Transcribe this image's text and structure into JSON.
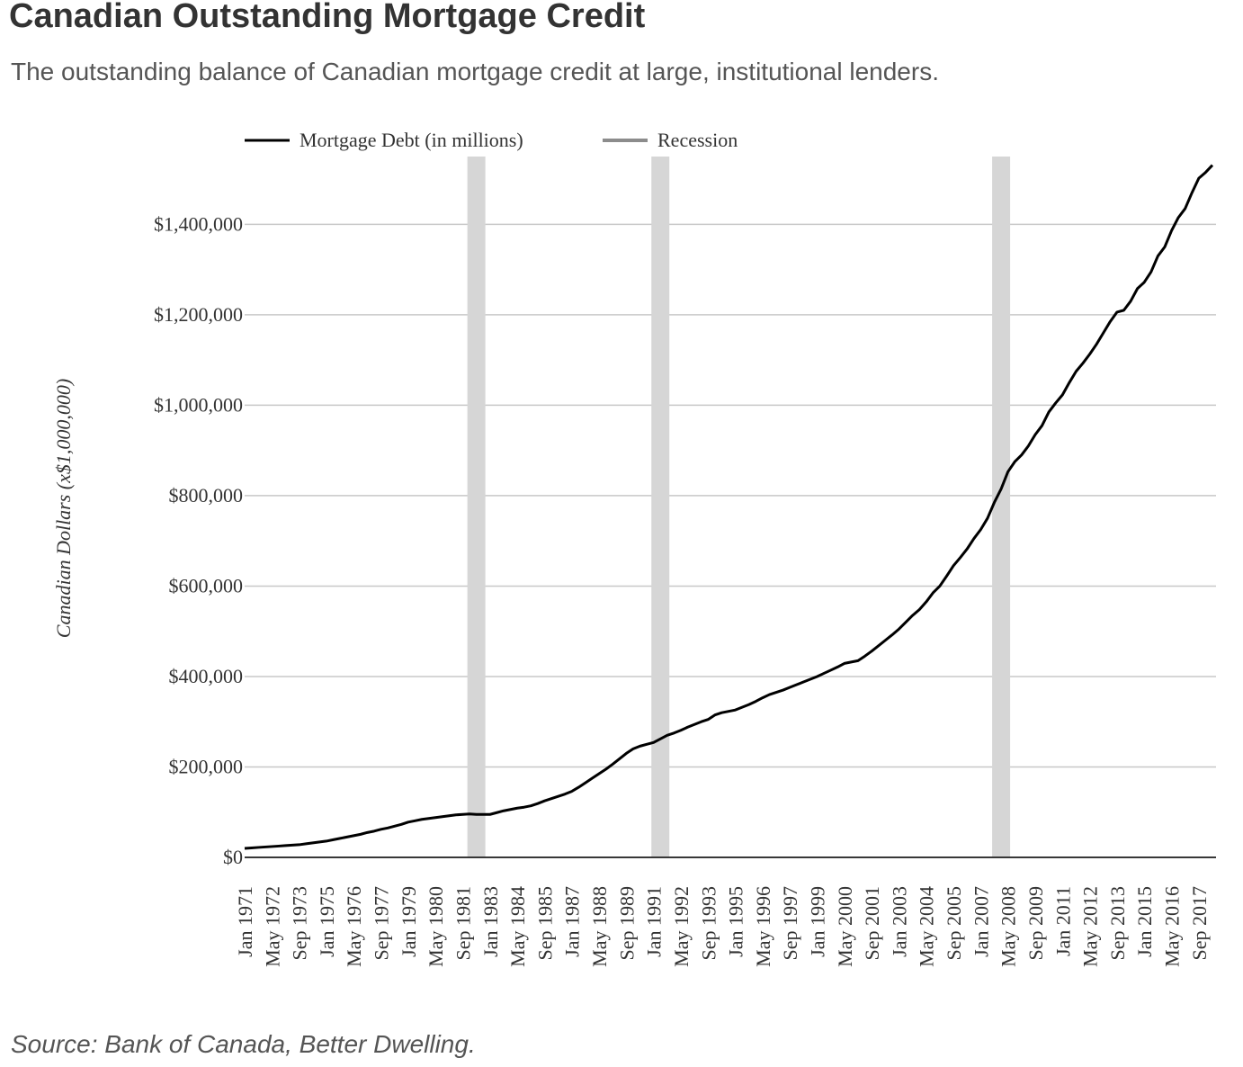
{
  "chart_data": {
    "type": "line",
    "title": "Canadian Outstanding Mortgage Credit",
    "subtitle": "The outstanding balance of Canadian mortgage credit at large, institutional lenders.",
    "y_label": "Canadian Dollars (x$1,000,000)",
    "source": "Source: Bank of Canada, Better Dwelling.",
    "categories": [
      "Jan 1971",
      null,
      null,
      null,
      "May 1972",
      null,
      null,
      null,
      "Sep 1973",
      null,
      null,
      null,
      "Jan 1975",
      null,
      null,
      null,
      "May 1976",
      null,
      null,
      null,
      "Sep 1977",
      null,
      null,
      null,
      "Jan 1979",
      null,
      null,
      null,
      "May 1980",
      null,
      null,
      null,
      "Sep 1981",
      null,
      null,
      null,
      "Jan 1983",
      null,
      null,
      null,
      "May 1984",
      null,
      null,
      null,
      "Sep 1985",
      null,
      null,
      null,
      "Jan 1987",
      null,
      null,
      null,
      "May 1988",
      null,
      null,
      null,
      "Sep 1989",
      null,
      null,
      null,
      "Jan 1991",
      null,
      null,
      null,
      "May 1992",
      null,
      null,
      null,
      "Sep 1993",
      null,
      null,
      null,
      "Jan 1995",
      null,
      null,
      null,
      "May 1996",
      null,
      null,
      null,
      "Sep 1997",
      null,
      null,
      null,
      "Jan 1999",
      null,
      null,
      null,
      "May 2000",
      null,
      null,
      null,
      "Sep 2001",
      null,
      null,
      null,
      "Jan 2003",
      null,
      null,
      null,
      "May 2004",
      null,
      null,
      null,
      "Sep 2005",
      null,
      null,
      null,
      "Jan 2007",
      null,
      null,
      null,
      "May 2008",
      null,
      null,
      null,
      "Sep 2009",
      null,
      null,
      null,
      "Jan 2011",
      null,
      null,
      null,
      "May 2012",
      null,
      null,
      null,
      "Sep 2013",
      null,
      null,
      null,
      "Jan 2015",
      null,
      null,
      null,
      "May 2016",
      null,
      null,
      null,
      "Sep 2017",
      null,
      null
    ],
    "series": [
      {
        "name": "Mortgage Debt (in millions)",
        "color": "#000000",
        "values": [
          20000,
          21000,
          22000,
          23000,
          24000,
          25000,
          26000,
          27000,
          28000,
          30000,
          32000,
          34000,
          36000,
          39000,
          42000,
          45000,
          48000,
          51000,
          55000,
          58000,
          62000,
          65000,
          69000,
          73000,
          78000,
          81000,
          84000,
          86000,
          88000,
          90000,
          92000,
          94000,
          95000,
          96000,
          95000,
          95000,
          95000,
          99000,
          103000,
          106000,
          109000,
          111000,
          114000,
          119000,
          125000,
          130000,
          135000,
          140000,
          146000,
          155000,
          165000,
          175000,
          185000,
          195000,
          206000,
          218000,
          230000,
          240000,
          246000,
          250000,
          254000,
          262000,
          270000,
          275000,
          281000,
          288000,
          294000,
          300000,
          305000,
          315000,
          320000,
          323000,
          326000,
          332000,
          338000,
          345000,
          353000,
          360000,
          365000,
          370000,
          376000,
          382000,
          388000,
          394000,
          400000,
          407000,
          414000,
          421000,
          429000,
          432000,
          435000,
          445000,
          456000,
          468000,
          480000,
          492000,
          505000,
          520000,
          535000,
          548000,
          565000,
          585000,
          600000,
          622000,
          645000,
          663000,
          682000,
          705000,
          725000,
          750000,
          785000,
          815000,
          853000,
          875000,
          890000,
          910000,
          935000,
          955000,
          985000,
          1005000,
          1023000,
          1050000,
          1075000,
          1093000,
          1113000,
          1135000,
          1160000,
          1185000,
          1206000,
          1210000,
          1230000,
          1258000,
          1272000,
          1295000,
          1330000,
          1350000,
          1386000,
          1415000,
          1435000,
          1470000,
          1502000,
          1515000,
          1531000
        ]
      },
      {
        "name": "Recession",
        "color": "#d6d6d6",
        "legend_color": "#8c8c8c",
        "kind": "band",
        "values": [
          null,
          null,
          null,
          null,
          null,
          null,
          null,
          null,
          null,
          null,
          null,
          null,
          null,
          null,
          null,
          null,
          null,
          null,
          null,
          null,
          null,
          null,
          null,
          null,
          null,
          null,
          null,
          null,
          null,
          null,
          null,
          null,
          null,
          null,
          1550000,
          null,
          null,
          null,
          null,
          null,
          null,
          null,
          null,
          null,
          null,
          null,
          null,
          null,
          null,
          null,
          null,
          null,
          null,
          null,
          null,
          null,
          null,
          null,
          null,
          null,
          null,
          1550000,
          null,
          null,
          null,
          null,
          null,
          null,
          null,
          null,
          null,
          null,
          null,
          null,
          null,
          null,
          null,
          null,
          null,
          null,
          null,
          null,
          null,
          null,
          null,
          null,
          null,
          null,
          null,
          null,
          null,
          null,
          null,
          null,
          null,
          null,
          null,
          null,
          null,
          null,
          null,
          null,
          null,
          null,
          null,
          null,
          null,
          null,
          null,
          null,
          null,
          1550000,
          null,
          null,
          null,
          null,
          null,
          null,
          null,
          null,
          null,
          null,
          null,
          null,
          null,
          null,
          null,
          null,
          null,
          null,
          null,
          null,
          null,
          null,
          null,
          null,
          null,
          null,
          null,
          null,
          null,
          null,
          null
        ]
      }
    ],
    "ylim": [
      0,
      1550000
    ],
    "yticks": [
      {
        "value": 0,
        "label": "$0"
      },
      {
        "value": 200000,
        "label": "$200,000"
      },
      {
        "value": 400000,
        "label": "$400,000"
      },
      {
        "value": 600000,
        "label": "$600,000"
      },
      {
        "value": 800000,
        "label": "$800,000"
      },
      {
        "value": 1000000,
        "label": "$1,000,000"
      },
      {
        "value": 1200000,
        "label": "$1,200,000"
      },
      {
        "value": 1400000,
        "label": "$1,400,000"
      }
    ],
    "grid": true
  }
}
